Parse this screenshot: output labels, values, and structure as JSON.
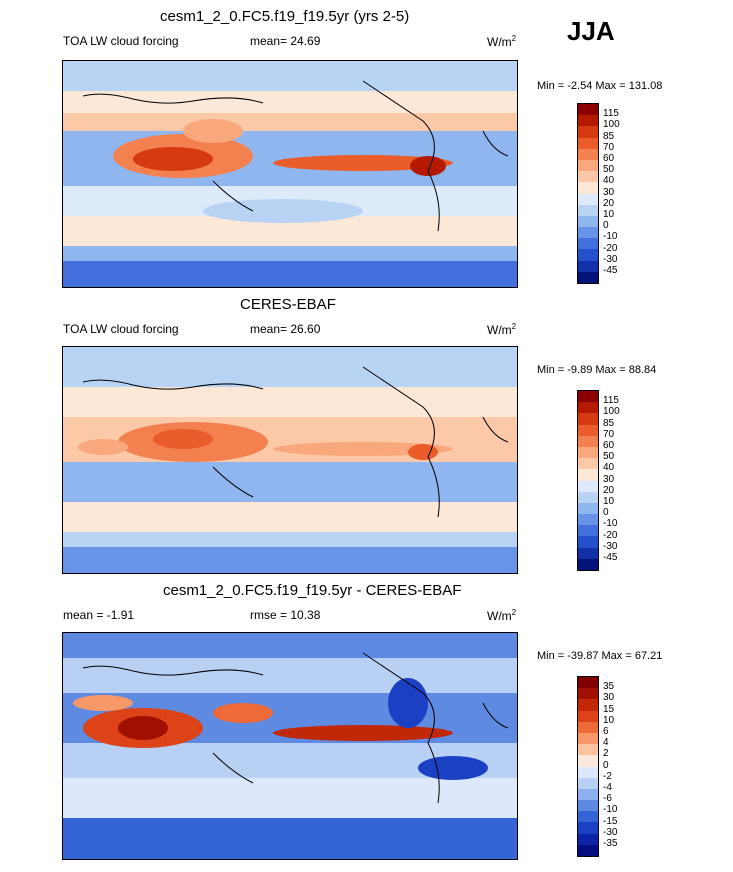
{
  "season": "JJA",
  "panels": [
    {
      "title": "cesm1_2_0.FC5.f19_f19.5yr (yrs 2-5)",
      "left_label": "TOA LW cloud forcing",
      "center_label": "mean=  24.69",
      "units": "W/m",
      "units_sup": "2",
      "minmax": "Min =  -2.54 Max = 131.08",
      "colorbar_labels": [
        "115",
        "100",
        "85",
        "70",
        "60",
        "50",
        "40",
        "30",
        "20",
        "10",
        "0",
        "-10",
        "-20",
        "-30",
        "-45"
      ],
      "colors": [
        "#8b0000",
        "#b51a00",
        "#d63a10",
        "#ea5c2a",
        "#f38150",
        "#f9a77c",
        "#fcc9a8",
        "#fde7d6",
        "#ddeafa",
        "#b9d3f5",
        "#8fb6ef",
        "#6794e6",
        "#4270dc",
        "#2450cc",
        "#1230a8",
        "#06147a"
      ]
    },
    {
      "title": "CERES-EBAF",
      "left_label": "TOA LW cloud forcing",
      "center_label": "mean=  26.60",
      "units": "W/m",
      "units_sup": "2",
      "minmax": "Min =  -9.89 Max =  88.84",
      "colorbar_labels": [
        "115",
        "100",
        "85",
        "70",
        "60",
        "50",
        "40",
        "30",
        "20",
        "10",
        "0",
        "-10",
        "-20",
        "-30",
        "-45"
      ],
      "colors": [
        "#8b0000",
        "#b51a00",
        "#d63a10",
        "#ea5c2a",
        "#f38150",
        "#f9a77c",
        "#fcc9a8",
        "#fde7d6",
        "#ddeafa",
        "#b9d3f5",
        "#8fb6ef",
        "#6794e6",
        "#4270dc",
        "#2450cc",
        "#1230a8",
        "#06147a"
      ]
    },
    {
      "title": "cesm1_2_0.FC5.f19_f19.5yr - CERES-EBAF",
      "left_label": "mean =  -1.91",
      "center_label": "rmse =  10.38",
      "units": "W/m",
      "units_sup": "2",
      "minmax": "Min = -39.87 Max =  67.21",
      "colorbar_labels": [
        "35",
        "30",
        "15",
        "10",
        "6",
        "4",
        "2",
        "0",
        "-2",
        "-4",
        "-6",
        "-10",
        "-15",
        "-30",
        "-35"
      ],
      "colors": [
        "#800000",
        "#a01000",
        "#c02808",
        "#dc4418",
        "#ee6a38",
        "#f79868",
        "#fbc3a0",
        "#fde8dc",
        "#dde9fa",
        "#b7d0f4",
        "#8cb0ee",
        "#5f8ae2",
        "#3564d6",
        "#1a40c4",
        "#0c24a6",
        "#040e80"
      ]
    }
  ]
}
